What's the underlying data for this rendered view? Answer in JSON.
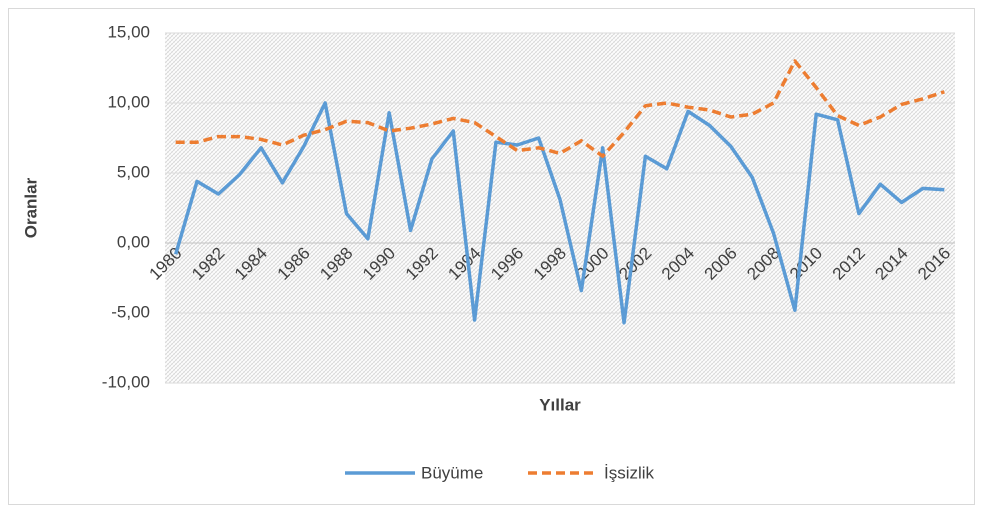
{
  "chart_data": {
    "type": "line",
    "x_label": "Yıllar",
    "y_label": "Oranlar",
    "categories": [
      1980,
      null,
      1982,
      null,
      1984,
      null,
      1986,
      null,
      1988,
      null,
      1990,
      null,
      1992,
      null,
      1994,
      null,
      1996,
      null,
      1998,
      null,
      2000,
      null,
      2002,
      null,
      2004,
      null,
      2006,
      null,
      2008,
      null,
      2010,
      null,
      2012,
      null,
      2014,
      null,
      2016
    ],
    "series": [
      {
        "name": "Büyüme",
        "color": "#5b9bd5",
        "dashed": false,
        "values": [
          -0.8,
          4.4,
          3.5,
          4.9,
          6.8,
          4.3,
          6.9,
          10.0,
          2.1,
          0.3,
          9.3,
          0.9,
          6.0,
          8.0,
          -5.5,
          7.2,
          7.0,
          7.5,
          3.1,
          -3.4,
          6.8,
          -5.7,
          6.2,
          5.3,
          9.4,
          8.4,
          6.9,
          4.7,
          0.7,
          -4.8,
          9.2,
          8.8,
          2.1,
          4.2,
          2.9,
          3.9,
          3.8
        ]
      },
      {
        "name": "İşsizlik",
        "color": "#ed7d31",
        "dashed": true,
        "values": [
          7.2,
          7.2,
          7.6,
          7.6,
          7.4,
          7.0,
          7.7,
          8.1,
          8.7,
          8.6,
          8.0,
          8.2,
          8.5,
          8.9,
          8.6,
          7.6,
          6.6,
          6.8,
          6.4,
          7.3,
          6.2,
          7.9,
          9.8,
          10.0,
          9.7,
          9.5,
          9.0,
          9.2,
          10.0,
          13.0,
          11.1,
          9.1,
          8.4,
          9.0,
          9.9,
          10.3,
          10.8
        ]
      }
    ],
    "ylim": [
      -10,
      15
    ],
    "yticks": [
      {
        "value": -10,
        "label": "-10,00"
      },
      {
        "value": -5,
        "label": "-5,00"
      },
      {
        "value": 0,
        "label": "0,00"
      },
      {
        "value": 5,
        "label": "5,00"
      },
      {
        "value": 10,
        "label": "10,00"
      },
      {
        "value": 15,
        "label": "15,00"
      }
    ],
    "grid": true,
    "legend": "bottom"
  }
}
